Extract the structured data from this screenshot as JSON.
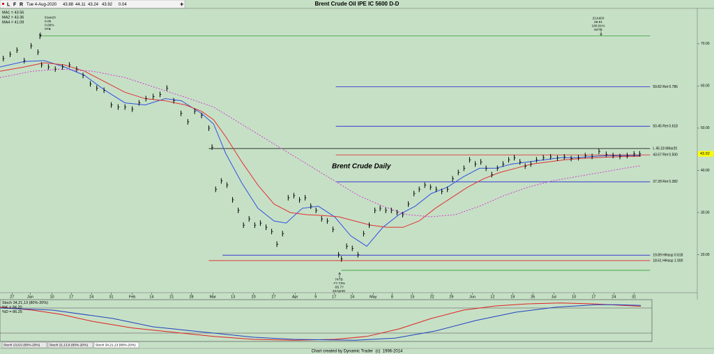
{
  "toolbar": {
    "icons": [
      "L",
      "F",
      "R"
    ],
    "date": "Tue 4-Aug-2020",
    "open": 43.88,
    "high": 44.11,
    "low": 43.24,
    "close": 43.92,
    "change": 0.04
  },
  "chart_data": [
    {
      "type": "ohlc",
      "title": "Brent Crude Oil IPE IC 5600 D-D",
      "subtitle": "Brent Crude Daily",
      "x": [
        -2.2,
        -0.5,
        1.2,
        3,
        4.7,
        6.4,
        6.9,
        7.3,
        9,
        10.7,
        12.5,
        14.2,
        16,
        17.6,
        19.4,
        21,
        22.8,
        24.6,
        26.3,
        28,
        29.8,
        31.5,
        33.2,
        35,
        36.7,
        38.4,
        40.1,
        41.9,
        43.6,
        45.3,
        47,
        48.8,
        49.6,
        50.5,
        51.9,
        53.3,
        54.7,
        56.1,
        57.4,
        58.8,
        60.2,
        61.6,
        63,
        64.4,
        65.7,
        67.1,
        68.5,
        69.9,
        71.3,
        72.7,
        74.1,
        75.4,
        76.8,
        78.2,
        79.6,
        81,
        81.7,
        83,
        84.4,
        85.8,
        87.2,
        88.6,
        90,
        91.3,
        92.7,
        94.1,
        95.5,
        96.9,
        98.3,
        99.7,
        101,
        102.4,
        103.8,
        105.2,
        106.6,
        108,
        109.3,
        110.7,
        112.1,
        113.5,
        114.9,
        116.3,
        117.6,
        119,
        120.4,
        121.8,
        123.2,
        124.6,
        126,
        127.3,
        128.7,
        130.1,
        131.8,
        133.6,
        135.3,
        137,
        138.7,
        140.5,
        142.2,
        143.9,
        145.6,
        147.4,
        149.1,
        150.8,
        152.6,
        154.3,
        155.7
      ],
      "values": [
        66.5,
        67.5,
        68.5,
        66,
        69.5,
        68,
        71.8,
        65,
        64.5,
        64,
        64.5,
        65,
        64,
        62.5,
        60.5,
        59.5,
        59,
        55.5,
        55,
        55,
        54.5,
        56,
        57,
        57.5,
        58,
        59.5,
        56.5,
        53.5,
        51.5,
        54,
        53,
        50,
        45.5,
        35.5,
        37.5,
        36.5,
        33,
        30.5,
        27,
        28.5,
        27,
        27.5,
        26.5,
        25.5,
        22.5,
        25,
        33.5,
        34,
        33,
        33.5,
        31.5,
        30.5,
        28.5,
        28,
        26,
        20,
        19,
        22,
        21.5,
        20,
        25,
        27,
        30.5,
        31,
        30.5,
        30.5,
        30,
        29.5,
        32,
        34.5,
        35.5,
        36.5,
        36,
        35.5,
        35,
        35.5,
        38,
        39.5,
        40.5,
        42.5,
        41.5,
        42,
        40.5,
        39,
        40.5,
        41.5,
        42.5,
        43,
        42,
        41,
        41.5,
        42.5,
        43,
        43.2,
        42.9,
        43.2,
        42.8,
        43,
        43.5,
        43.3,
        44.5,
        43.8,
        43.5,
        43.3,
        43.5,
        43.9,
        43.92
      ],
      "color": "#000000",
      "series": [
        {
          "name": "MA1 = 43.56",
          "color": "#3050e0",
          "dash": false,
          "x": [
            -3,
            3,
            8,
            13,
            18,
            23,
            28,
            33,
            38,
            42,
            47,
            50,
            53,
            57,
            61,
            65,
            68,
            72,
            76,
            80,
            84,
            88,
            92,
            96,
            100,
            104,
            108,
            112,
            116,
            120,
            124,
            128,
            132,
            136,
            140,
            144,
            148,
            152,
            156
          ],
          "values": [
            64.5,
            65.8,
            66,
            64.5,
            62.5,
            59,
            56,
            55.5,
            57,
            56.5,
            53.5,
            51,
            44,
            37,
            31,
            28,
            27.5,
            31,
            31.5,
            29,
            24.5,
            22,
            26.5,
            29.5,
            31.5,
            34.5,
            36,
            38.5,
            40.5,
            40.5,
            41.5,
            42,
            42.5,
            43,
            43,
            43.3,
            43.5,
            43.5,
            43.56
          ]
        },
        {
          "name": "MA2 = 43.36",
          "color": "#e03030",
          "dash": false,
          "x": [
            -3,
            3,
            8,
            13,
            18,
            23,
            28,
            33,
            38,
            43,
            47,
            50,
            53,
            57,
            61,
            65,
            69,
            73,
            77,
            81,
            85,
            89,
            93,
            97,
            101,
            105,
            109,
            113,
            117,
            121,
            125,
            129,
            133,
            137,
            141,
            145,
            149,
            153,
            156
          ],
          "values": [
            63.5,
            64.5,
            65.5,
            65,
            63.5,
            61,
            58.5,
            57,
            56.5,
            55.5,
            54,
            52,
            48,
            42,
            36.5,
            32,
            30,
            29.5,
            29.3,
            29,
            28,
            27,
            26.5,
            26.5,
            28,
            31,
            33.5,
            36,
            38,
            39.5,
            40.5,
            41.5,
            42,
            42.5,
            42.8,
            43,
            43.2,
            43.3,
            43.36
          ]
        },
        {
          "name": "MA4 = 41.09",
          "color": "#d040d0",
          "dash": true,
          "x": [
            -3,
            5,
            12,
            20,
            28,
            36,
            44,
            50,
            56,
            62,
            68,
            74,
            80,
            86,
            92,
            98,
            104,
            110,
            116,
            122,
            128,
            134,
            140,
            146,
            152,
            156
          ],
          "values": [
            62,
            63.5,
            64,
            63.5,
            62,
            59.5,
            57,
            55,
            51.5,
            48,
            44.5,
            41,
            37.5,
            34,
            31.5,
            29.5,
            29,
            29.5,
            31.5,
            34,
            36,
            37.5,
            38.5,
            39.5,
            40.5,
            41.09
          ]
        }
      ],
      "levels": [
        {
          "value": 71.9,
          "color": "#30a030",
          "x": [
            7,
            158.3
          ]
        },
        {
          "value": 59.82,
          "label": "59.82 Ret 0.786",
          "color": "#2020d0",
          "x": [
            80.3,
            158.3
          ]
        },
        {
          "value": 50.45,
          "label": "50.45 Ret 0.618",
          "color": "#2020d0",
          "x": [
            80.3,
            158.3
          ]
        },
        {
          "value": 45.18,
          "label": "L 45.18 6Mar20",
          "color": "#000000",
          "x": [
            48.8,
            158.3
          ]
        },
        {
          "value": 43.67,
          "label": "43.67 Ret 0.500",
          "color": "#e02020",
          "x": [
            80.3,
            158.3
          ]
        },
        {
          "value": 37.28,
          "label": "37.28 Ret 0.382",
          "color": "#2020d0",
          "x": [
            80.3,
            158.3
          ]
        },
        {
          "value": 19.89,
          "label": "19.89 HHasp 0.618",
          "color": "#2020d0",
          "x": [
            52.2,
            158.3
          ]
        },
        {
          "value": 18.61,
          "label": "18.61 HHasp 1.000",
          "color": "#e02020",
          "x": [
            48.8,
            158.3
          ]
        },
        {
          "value": 16.3,
          "color": "#30a030",
          "x": [
            81.7,
            158.3
          ]
        }
      ],
      "annotations": [
        [
          "6Jan20",
          "0.00",
          "0.00%",
          "0TB"
        ],
        [
          "21Jul20",
          "28.91",
          "180.91%",
          "64TB"
        ],
        [
          "74TB",
          "-77.73%",
          "-55.77",
          "22Apr20"
        ]
      ],
      "last_price": 43.92,
      "xlim": [
        -3,
        170
      ],
      "ylim": [
        11,
        78.4
      ],
      "xticks": [
        {
          "value": 0,
          "label": "27"
        },
        {
          "value": 4.5,
          "label": "Jan"
        },
        {
          "value": 9.9,
          "label": "10"
        },
        {
          "value": 14.7,
          "label": "17"
        },
        {
          "value": 19.7,
          "label": "24"
        },
        {
          "value": 24.6,
          "label": "31"
        },
        {
          "value": 29.8,
          "label": "Feb"
        },
        {
          "value": 34.6,
          "label": "14"
        },
        {
          "value": 39.6,
          "label": "21"
        },
        {
          "value": 44.5,
          "label": "28"
        },
        {
          "value": 49.8,
          "label": "Mar"
        },
        {
          "value": 54.8,
          "label": "13"
        },
        {
          "value": 59.9,
          "label": "20"
        },
        {
          "value": 64.9,
          "label": "27"
        },
        {
          "value": 70.2,
          "label": "Apr"
        },
        {
          "value": 75.3,
          "label": "9"
        },
        {
          "value": 79.9,
          "label": "17"
        },
        {
          "value": 84.4,
          "label": "24"
        },
        {
          "value": 89.6,
          "label": "May"
        },
        {
          "value": 94.3,
          "label": "8"
        },
        {
          "value": 99.3,
          "label": "15"
        },
        {
          "value": 104.2,
          "label": "22"
        },
        {
          "value": 109,
          "label": "29"
        },
        {
          "value": 114.2,
          "label": "Jun"
        },
        {
          "value": 119.2,
          "label": "12"
        },
        {
          "value": 124.2,
          "label": "19"
        },
        {
          "value": 129.2,
          "label": "26"
        },
        {
          "value": 134.4,
          "label": "Jul"
        },
        {
          "value": 139.4,
          "label": "10"
        },
        {
          "value": 144.3,
          "label": "17"
        },
        {
          "value": 149.3,
          "label": "24"
        },
        {
          "value": 154.3,
          "label": "31"
        }
      ],
      "yticks": [
        {
          "value": 70,
          "label": "70.00"
        },
        {
          "value": 60,
          "label": "60.00"
        },
        {
          "value": 50,
          "label": "50.00"
        },
        {
          "value": 40,
          "label": "40.00"
        },
        {
          "value": 30,
          "label": "30.00"
        },
        {
          "value": 20,
          "label": "20.00"
        }
      ]
    },
    {
      "type": "line",
      "title": "Stoch 34,21,13 (80%-20%)",
      "series": [
        {
          "name": "%K = 84.20",
          "color": "#e02020",
          "x": [
            -3,
            5,
            12,
            20,
            30,
            40,
            50,
            60,
            70,
            80,
            88,
            96,
            104,
            112,
            120,
            128,
            136,
            144,
            150,
            156
          ],
          "values": [
            82,
            75,
            65,
            48,
            32,
            22,
            12,
            5,
            3,
            5,
            12,
            30,
            55,
            75,
            85,
            90,
            92,
            90,
            87,
            84.2
          ]
        },
        {
          "name": "%D = 86.25",
          "color": "#2040c0",
          "x": [
            -3,
            10,
            25,
            35,
            50,
            60,
            70,
            85,
            95,
            105,
            115,
            125,
            135,
            145,
            150,
            156
          ],
          "values": [
            80,
            75,
            55,
            35,
            20,
            10,
            5,
            3,
            8,
            25,
            50,
            70,
            82,
            88,
            88,
            86.25
          ]
        }
      ],
      "levels": [
        80,
        20
      ],
      "xlim": [
        -3,
        170
      ],
      "ylim": [
        0,
        100
      ]
    }
  ],
  "tabs": [
    "Stoch 13,8,5 (80%-20%)",
    "Stoch 21,13,8 (80%-20%)",
    "Stoch 34,21,13 (80%-20%)"
  ],
  "footer": "Chart created by Dynamic Trader  (c)  1996-2014"
}
